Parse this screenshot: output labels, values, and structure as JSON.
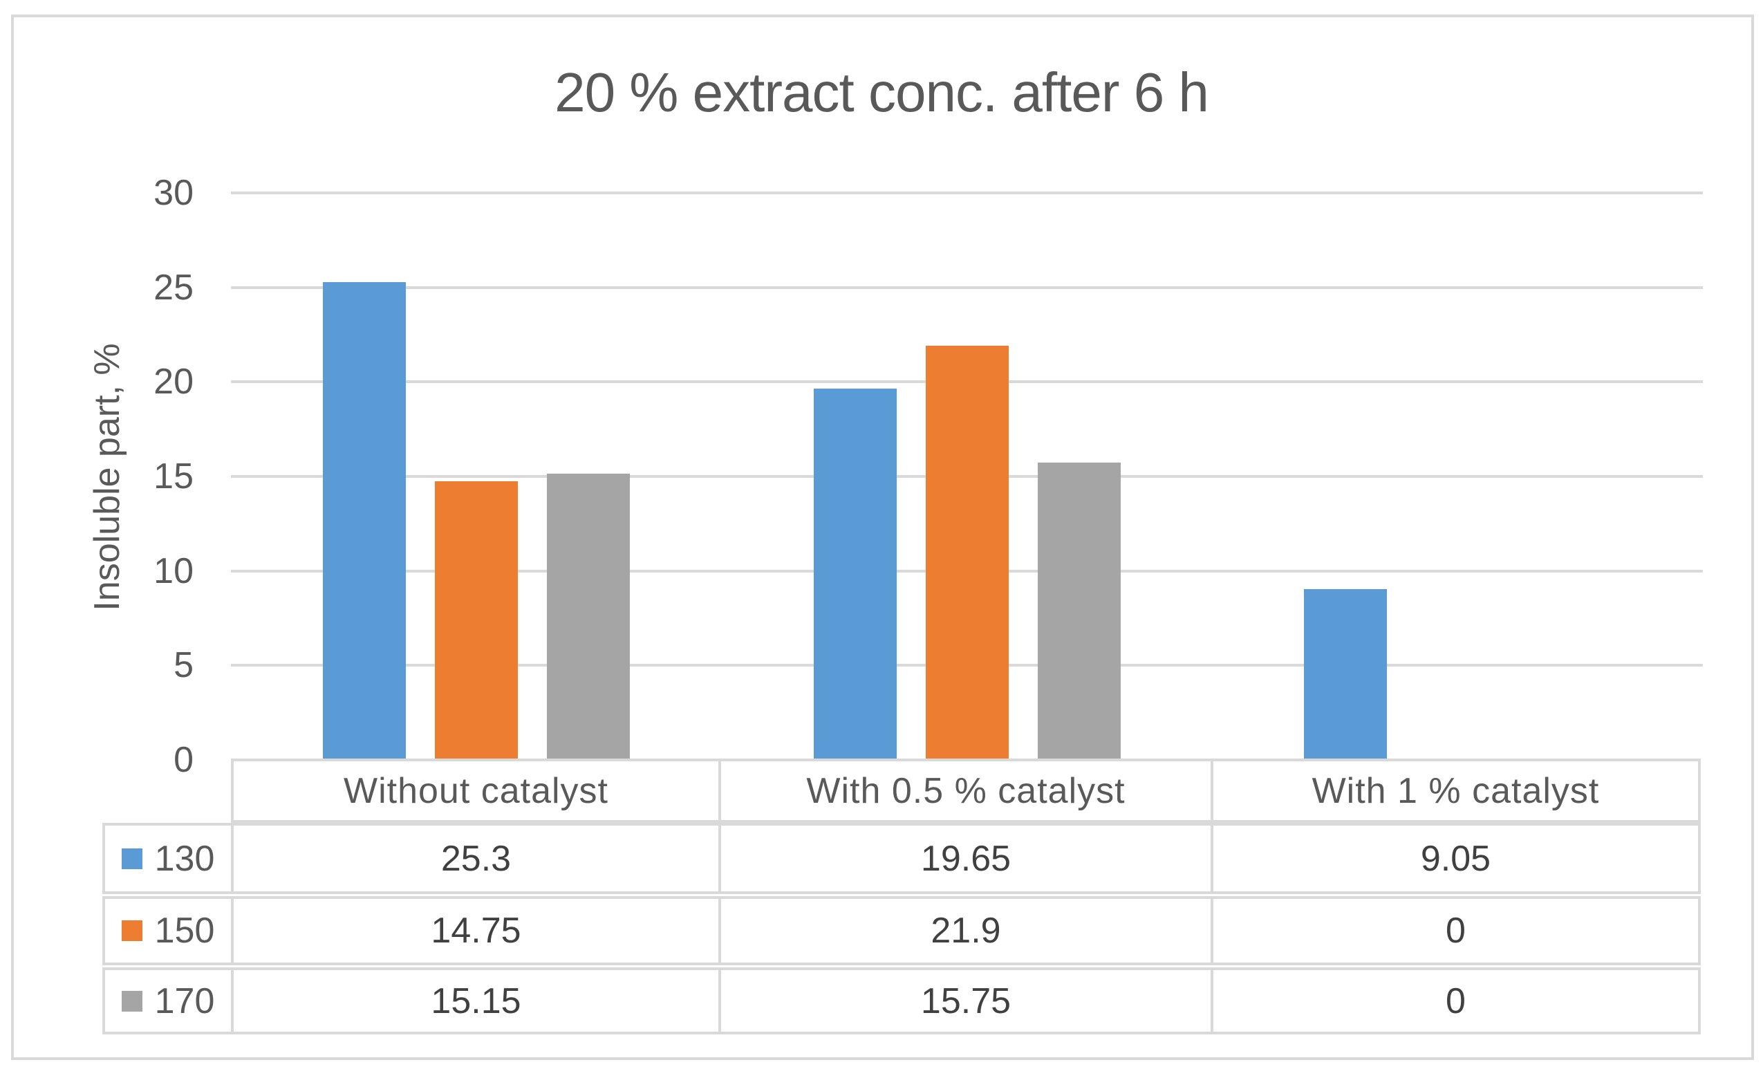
{
  "title": "20 % extract conc. after 6 h",
  "y_axis": {
    "label": "Insoluble part, %",
    "ticks": [
      30,
      25,
      20,
      15,
      10,
      5,
      0
    ],
    "min": 0,
    "max": 30
  },
  "chart_data": {
    "type": "bar",
    "title": "20 % extract conc. after 6 h",
    "xlabel": "",
    "ylabel": "Insoluble part, %",
    "ylim": [
      0,
      30
    ],
    "grid": true,
    "legend_position": "data-table-left",
    "categories": [
      "Without catalyst",
      "With 0.5 % catalyst",
      "With 1 % catalyst"
    ],
    "series": [
      {
        "name": "130",
        "color": "#5B9BD5",
        "values": [
          25.3,
          19.65,
          9.05
        ]
      },
      {
        "name": "150",
        "color": "#ED7D31",
        "values": [
          14.75,
          21.9,
          0
        ]
      },
      {
        "name": "170",
        "color": "#A5A5A5",
        "values": [
          15.15,
          15.75,
          0
        ]
      }
    ]
  },
  "data_table": {
    "columns": [
      "Without catalyst",
      "With 0.5 % catalyst",
      "With 1 % catalyst"
    ],
    "rows": [
      {
        "label": "130",
        "swatch_color": "#5B9BD5",
        "values": [
          "25.3",
          "19.65",
          "9.05"
        ]
      },
      {
        "label": "150",
        "swatch_color": "#ED7D31",
        "values": [
          "14.75",
          "21.9",
          "0"
        ]
      },
      {
        "label": "170",
        "swatch_color": "#A5A5A5",
        "values": [
          "15.15",
          "15.75",
          "0"
        ]
      }
    ]
  },
  "colors": {
    "text": "#595959",
    "gridline": "#D9D9D9",
    "border": "#D9D9D9",
    "background": "#FFFFFF",
    "series_blue": "#5B9BD5",
    "series_orange": "#ED7D31",
    "series_gray": "#A5A5A5"
  }
}
